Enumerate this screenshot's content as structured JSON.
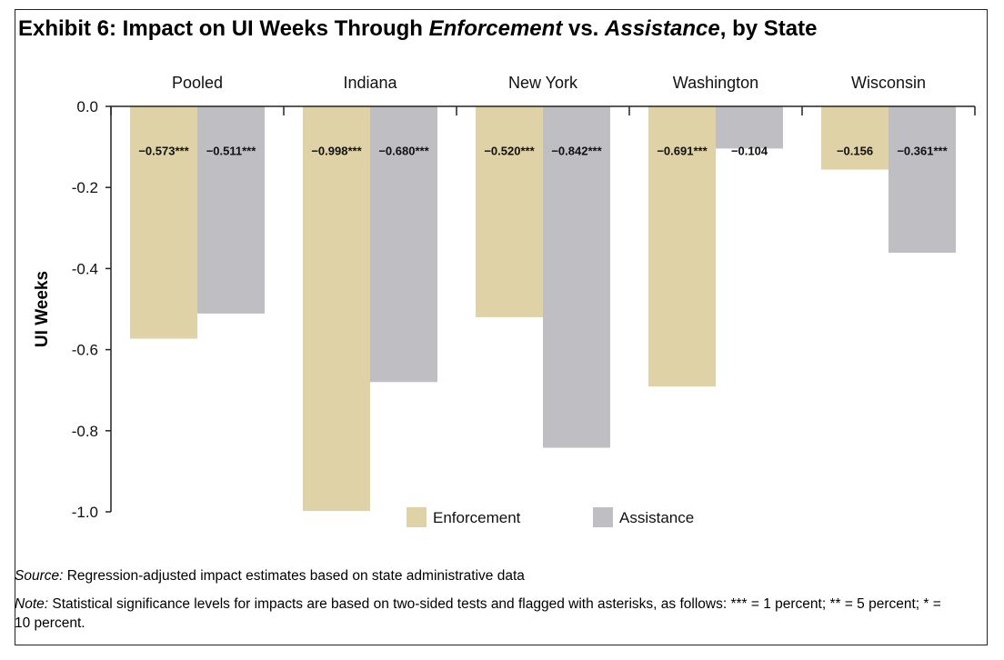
{
  "title": {
    "prefix": "Exhibit 6: Impact on UI Weeks Through ",
    "em1": "Enforcement",
    "mid": " vs. ",
    "em2": "Assistance",
    "suffix": ", by State"
  },
  "source_label": "Source:",
  "source_text": " Regression-adjusted impact estimates based on state administrative data",
  "note_label": "Note:",
  "note_text": " Statistical significance levels for impacts are based on two-sided tests and flagged with asterisks, as follows: *** = 1 percent; ** = 5 percent; * = 10 percent.",
  "chart_data": {
    "type": "bar",
    "ylabel": "UI Weeks",
    "ylim": [
      -1.0,
      0.0
    ],
    "yticks": [
      "0.0",
      "-0.2",
      "-0.4",
      "-0.6",
      "-0.8",
      "-1.0"
    ],
    "yticks_values": [
      0.0,
      -0.2,
      -0.4,
      -0.6,
      -0.8,
      -1.0
    ],
    "categories": [
      "Pooled",
      "Indiana",
      "New York",
      "Washington",
      "Wisconsin"
    ],
    "category_axis_position": "top",
    "legend_position": "bottom-center",
    "series": [
      {
        "name": "Enforcement",
        "color": "#dfd2a6",
        "values": [
          -0.573,
          -0.998,
          -0.52,
          -0.691,
          -0.156
        ],
        "labels": [
          "−0.573***",
          "−0.998***",
          "−0.520***",
          "−0.691***",
          "−0.156"
        ]
      },
      {
        "name": "Assistance",
        "color": "#bfbfc3",
        "values": [
          -0.511,
          -0.68,
          -0.842,
          -0.104,
          -0.361
        ],
        "labels": [
          "−0.511***",
          "−0.680***",
          "−0.842***",
          "−0.104",
          "−0.361***"
        ]
      }
    ]
  }
}
